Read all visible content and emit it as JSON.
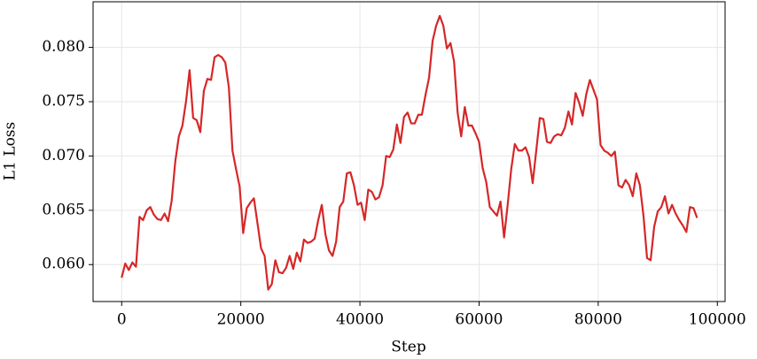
{
  "chart_data": {
    "type": "line",
    "x_label": "Step",
    "y_label": "L1 Loss",
    "x": [
      0,
      600,
      1200,
      1800,
      2400,
      3000,
      3600,
      4200,
      4800,
      5400,
      6000,
      6600,
      7200,
      7800,
      8400,
      9000,
      9600,
      10200,
      10800,
      11400,
      12000,
      12600,
      13200,
      13800,
      14400,
      15000,
      15600,
      16200,
      16800,
      17400,
      18000,
      18600,
      19200,
      19800,
      20400,
      21000,
      21600,
      22200,
      22800,
      23400,
      24000,
      24600,
      25200,
      25800,
      26400,
      27000,
      27600,
      28200,
      28800,
      29400,
      30000,
      30600,
      31200,
      31800,
      32400,
      33000,
      33600,
      34200,
      34800,
      35400,
      36000,
      36600,
      37200,
      37800,
      38400,
      39000,
      39600,
      40200,
      40800,
      41400,
      42000,
      42600,
      43200,
      43800,
      44400,
      45000,
      45600,
      46200,
      46800,
      47400,
      48000,
      48600,
      49200,
      49800,
      50400,
      51000,
      51600,
      52200,
      52800,
      53400,
      54000,
      54600,
      55200,
      55800,
      56400,
      57000,
      57600,
      58200,
      58800,
      59400,
      60000,
      60600,
      61200,
      61800,
      62400,
      63000,
      63600,
      64200,
      64800,
      65400,
      66000,
      66600,
      67200,
      67800,
      68400,
      69000,
      69600,
      70200,
      70800,
      71400,
      72000,
      72600,
      73200,
      73800,
      74400,
      75000,
      75600,
      76200,
      76800,
      77400,
      78000,
      78600,
      79200,
      79800,
      80400,
      81000,
      81600,
      82200,
      82800,
      83400,
      84000,
      84600,
      85200,
      85800,
      86400,
      87000,
      87600,
      88200,
      88800,
      89400,
      90000,
      90600,
      91200,
      91800,
      92400,
      93000,
      93600,
      94200,
      94800,
      95400,
      96000,
      96600
    ],
    "series": [
      {
        "color": "#d62728",
        "values": [
          0.0588,
          0.0601,
          0.0595,
          0.0602,
          0.0598,
          0.0644,
          0.0641,
          0.065,
          0.0653,
          0.0646,
          0.0642,
          0.0641,
          0.0647,
          0.064,
          0.0659,
          0.0695,
          0.0718,
          0.0728,
          0.075,
          0.0779,
          0.0735,
          0.0733,
          0.0722,
          0.076,
          0.0771,
          0.077,
          0.0791,
          0.0793,
          0.0791,
          0.0786,
          0.0763,
          0.0705,
          0.0688,
          0.0672,
          0.0629,
          0.0652,
          0.0657,
          0.0661,
          0.0638,
          0.0615,
          0.0608,
          0.0577,
          0.0582,
          0.0604,
          0.0593,
          0.0592,
          0.0597,
          0.0608,
          0.0596,
          0.0611,
          0.0603,
          0.0623,
          0.062,
          0.0621,
          0.0624,
          0.0641,
          0.0655,
          0.0628,
          0.0613,
          0.0608,
          0.0621,
          0.0653,
          0.0658,
          0.0684,
          0.0685,
          0.0673,
          0.0655,
          0.0657,
          0.0641,
          0.0669,
          0.0667,
          0.066,
          0.0662,
          0.0673,
          0.07,
          0.0699,
          0.0706,
          0.0729,
          0.0712,
          0.0736,
          0.074,
          0.073,
          0.073,
          0.0738,
          0.0738,
          0.0756,
          0.0772,
          0.0806,
          0.082,
          0.0829,
          0.082,
          0.0799,
          0.0804,
          0.0787,
          0.074,
          0.0718,
          0.0745,
          0.0728,
          0.0728,
          0.0721,
          0.0713,
          0.0689,
          0.0676,
          0.0653,
          0.0649,
          0.0645,
          0.0658,
          0.0625,
          0.0655,
          0.0688,
          0.0711,
          0.0705,
          0.0705,
          0.0708,
          0.0699,
          0.0675,
          0.0705,
          0.0735,
          0.0734,
          0.0713,
          0.0712,
          0.0718,
          0.072,
          0.0719,
          0.0726,
          0.0741,
          0.0729,
          0.0758,
          0.0749,
          0.0737,
          0.0757,
          0.077,
          0.0761,
          0.0752,
          0.071,
          0.0705,
          0.0703,
          0.07,
          0.0704,
          0.0673,
          0.0671,
          0.0678,
          0.0673,
          0.0663,
          0.0684,
          0.0673,
          0.0645,
          0.0606,
          0.0604,
          0.0635,
          0.0649,
          0.0653,
          0.0663,
          0.0647,
          0.0655,
          0.0647,
          0.0641,
          0.0636,
          0.063,
          0.0653,
          0.0652,
          0.0643
        ]
      }
    ],
    "xlim": [
      -4800,
      101300
    ],
    "ylim": [
      0.0566,
      0.0842
    ],
    "xticks": [
      0,
      20000,
      40000,
      60000,
      80000,
      100000
    ],
    "yticks": [
      {
        "value": 0.06,
        "label": "0.060"
      },
      {
        "value": 0.065,
        "label": "0.065"
      },
      {
        "value": 0.07,
        "label": "0.070"
      },
      {
        "value": 0.075,
        "label": "0.075"
      },
      {
        "value": 0.08,
        "label": "0.080"
      }
    ],
    "grid": true
  }
}
